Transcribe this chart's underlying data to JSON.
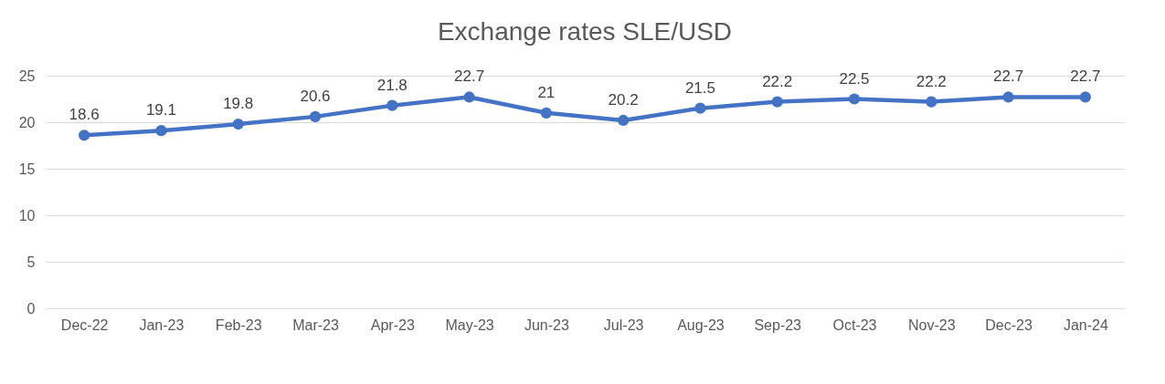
{
  "chart_data": {
    "type": "line",
    "title": "Exchange rates SLE/USD",
    "categories": [
      "Dec-22",
      "Jan-23",
      "Feb-23",
      "Mar-23",
      "Apr-23",
      "May-23",
      "Jun-23",
      "Jul-23",
      "Aug-23",
      "Sep-23",
      "Oct-23",
      "Nov-23",
      "Dec-23",
      "Jan-24"
    ],
    "series": [
      {
        "color": "#4472c4",
        "values": [
          18.6,
          19.1,
          19.8,
          20.6,
          21.8,
          22.7,
          21,
          20.2,
          21.5,
          22.2,
          22.5,
          22.2,
          22.7,
          22.7
        ]
      }
    ],
    "ylim": [
      0,
      25
    ],
    "yticks": [
      0,
      5,
      10,
      15,
      20,
      25
    ],
    "grid": "y",
    "marker": "circle",
    "line_style": "solid",
    "data_labels": true,
    "legend": false
  }
}
